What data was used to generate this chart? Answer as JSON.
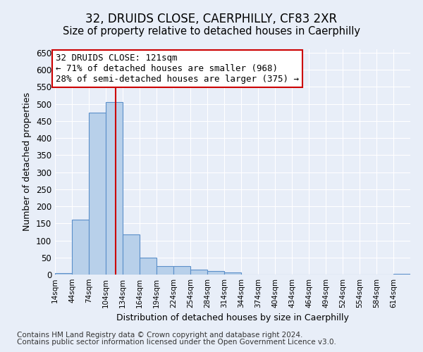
{
  "title": "32, DRUIDS CLOSE, CAERPHILLY, CF83 2XR",
  "subtitle": "Size of property relative to detached houses in Caerphilly",
  "xlabel": "Distribution of detached houses by size in Caerphilly",
  "ylabel": "Number of detached properties",
  "bar_edges": [
    14,
    44,
    74,
    104,
    134,
    164,
    194,
    224,
    254,
    284,
    314,
    344,
    374,
    404,
    434,
    464,
    494,
    524,
    554,
    584,
    614
  ],
  "bar_heights": [
    5,
    160,
    475,
    505,
    118,
    50,
    25,
    25,
    15,
    10,
    7,
    0,
    0,
    0,
    0,
    0,
    0,
    0,
    0,
    0,
    3
  ],
  "bar_color": "#b8d0ea",
  "bar_edge_color": "#5b8fc9",
  "vline_x": 121,
  "vline_color": "#cc0000",
  "ylim": [
    0,
    660
  ],
  "yticks": [
    0,
    50,
    100,
    150,
    200,
    250,
    300,
    350,
    400,
    450,
    500,
    550,
    600,
    650
  ],
  "annotation_text": "32 DRUIDS CLOSE: 121sqm\n← 71% of detached houses are smaller (968)\n28% of semi-detached houses are larger (375) →",
  "annotation_box_color": "#ffffff",
  "annotation_box_edgecolor": "#cc0000",
  "footer_line1": "Contains HM Land Registry data © Crown copyright and database right 2024.",
  "footer_line2": "Contains public sector information licensed under the Open Government Licence v3.0.",
  "background_color": "#e8eef8",
  "grid_color": "#ffffff",
  "title_fontsize": 12,
  "subtitle_fontsize": 10.5,
  "tick_label_fontsize": 7.5,
  "ylabel_fontsize": 9,
  "xlabel_fontsize": 9,
  "footer_fontsize": 7.5,
  "annotation_fontsize": 9
}
